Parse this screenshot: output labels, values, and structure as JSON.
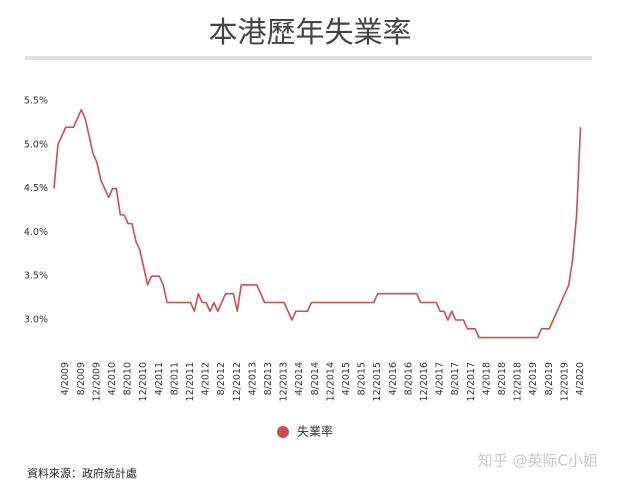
{
  "chart_data": {
    "type": "line",
    "title": "本港歷年失業率",
    "categories": [
      null,
      null,
      null,
      "4/2009",
      null,
      null,
      null,
      "8/2009",
      null,
      null,
      null,
      "12/2009",
      null,
      null,
      null,
      "4/2010",
      null,
      null,
      null,
      "8/2010",
      null,
      null,
      null,
      "12/2010",
      null,
      null,
      null,
      "4/2011",
      null,
      null,
      null,
      "8/2011",
      null,
      null,
      null,
      "12/2011",
      null,
      null,
      null,
      "4/2012",
      null,
      null,
      null,
      "8/2012",
      null,
      null,
      null,
      "12/2012",
      null,
      null,
      null,
      "4/2013",
      null,
      null,
      null,
      "8/2013",
      null,
      null,
      null,
      "12/2013",
      null,
      null,
      null,
      "4/2014",
      null,
      null,
      null,
      "8/2014",
      null,
      null,
      null,
      "12/2014",
      null,
      null,
      null,
      "4/2015",
      null,
      null,
      null,
      "8/2015",
      null,
      null,
      null,
      "12/2015",
      null,
      null,
      null,
      "4/2016",
      null,
      null,
      null,
      "8/2016",
      null,
      null,
      null,
      "12/2016",
      null,
      null,
      null,
      "4/2017",
      null,
      null,
      null,
      "8/2017",
      null,
      null,
      null,
      "12/2017",
      null,
      null,
      null,
      "4/2018",
      null,
      null,
      null,
      "8/2018",
      null,
      null,
      null,
      "12/2018",
      null,
      null,
      null,
      "4/2019",
      null,
      null,
      null,
      "8/2019",
      null,
      null,
      null,
      "12/2019",
      null,
      null,
      null,
      "4/2020"
    ],
    "series": [
      {
        "name": "失業率",
        "color": "#c9504f",
        "values": [
          4.5,
          5.0,
          5.1,
          5.2,
          5.2,
          5.2,
          5.3,
          5.4,
          5.3,
          5.1,
          4.9,
          4.8,
          4.6,
          4.5,
          4.4,
          4.5,
          4.5,
          4.2,
          4.2,
          4.1,
          4.1,
          3.9,
          3.8,
          3.6,
          3.4,
          3.5,
          3.5,
          3.5,
          3.4,
          3.2,
          3.2,
          3.2,
          3.2,
          3.2,
          3.2,
          3.2,
          3.1,
          3.3,
          3.2,
          3.2,
          3.1,
          3.2,
          3.1,
          3.2,
          3.3,
          3.3,
          3.3,
          3.1,
          3.4,
          3.4,
          3.4,
          3.4,
          3.4,
          3.3,
          3.2,
          3.2,
          3.2,
          3.2,
          3.2,
          3.2,
          3.1,
          3.0,
          3.1,
          3.1,
          3.1,
          3.1,
          3.2,
          3.2,
          3.2,
          3.2,
          3.2,
          3.2,
          3.2,
          3.2,
          3.2,
          3.2,
          3.2,
          3.2,
          3.2,
          3.2,
          3.2,
          3.2,
          3.2,
          3.3,
          3.3,
          3.3,
          3.3,
          3.3,
          3.3,
          3.3,
          3.3,
          3.3,
          3.3,
          3.3,
          3.2,
          3.2,
          3.2,
          3.2,
          3.2,
          3.1,
          3.1,
          3.0,
          3.1,
          3.0,
          3.0,
          3.0,
          2.9,
          2.9,
          2.9,
          2.8,
          2.8,
          2.8,
          2.8,
          2.8,
          2.8,
          2.8,
          2.8,
          2.8,
          2.8,
          2.8,
          2.8,
          2.8,
          2.8,
          2.8,
          2.8,
          2.9,
          2.9,
          2.9,
          3.0,
          3.1,
          3.2,
          3.3,
          3.4,
          3.7,
          4.2,
          5.2
        ]
      }
    ],
    "ylim": [
      2.7,
      5.6
    ],
    "yticks": [
      {
        "value": 3.0,
        "label": "3.0%"
      },
      {
        "value": 3.5,
        "label": "3.5%"
      },
      {
        "value": 4.0,
        "label": "4.0%"
      },
      {
        "value": 4.5,
        "label": "4.5%"
      },
      {
        "value": 5.0,
        "label": "5.0%"
      },
      {
        "value": 5.5,
        "label": "5.5%"
      }
    ],
    "source": "資料來源：政府統計處",
    "watermark": "知乎 @英际C小姐"
  }
}
